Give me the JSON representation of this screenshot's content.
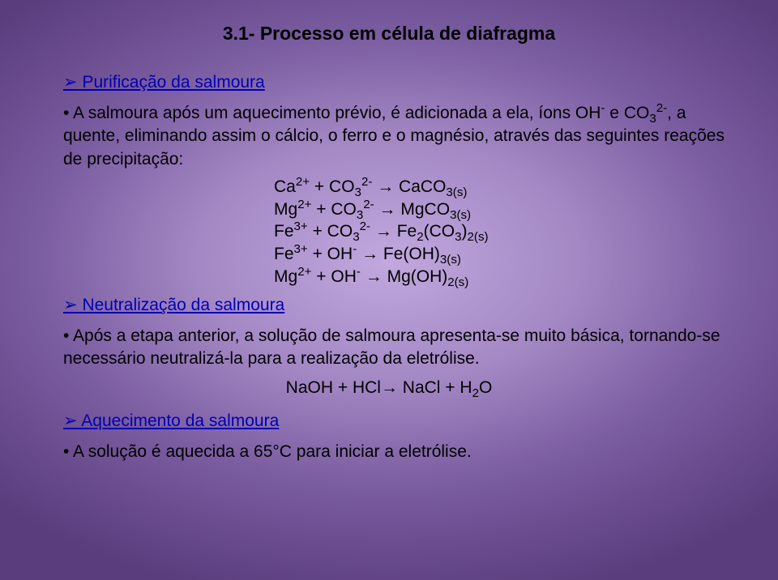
{
  "colors": {
    "heading": "#000000",
    "section_link": "#0000b3",
    "body_text": "#000000",
    "bg_center": "#c1a8de",
    "bg_edge": "#5a3d7d"
  },
  "typography": {
    "title_fontsize": 23,
    "body_fontsize": 21,
    "font_family": "Arial"
  },
  "title": "3.1- Processo em célula de diafragma",
  "sections": {
    "purif": {
      "chev": "➢",
      "label": " Purificação da salmoura"
    },
    "neutral": {
      "chev": "➢",
      "label": " Neutralização da salmoura"
    },
    "aquec": {
      "chev": "➢",
      "label": " Aquecimento da salmoura"
    }
  },
  "bullets": {
    "purif_intro_pre": "• A salmoura após um aquecimento prévio, é adicionada a ela, íons OH",
    "purif_intro_mid1": " e CO",
    "purif_intro_mid2": ", a quente, eliminando assim o cálcio, o ferro e o magnésio, através das seguintes reações de precipitação:",
    "neutral_line": "• Após a etapa anterior, a solução de salmoura apresenta-se muito básica, tornando-se necessário neutralizá-la para a realização da eletrólise.",
    "aquec_line": "• A solução é aquecida a 65°C para iniciar a eletrólise."
  },
  "equations": {
    "arrow": "→",
    "eq1": {
      "lhs_a": "Ca",
      "lhs_a_sup": "2+",
      "plus": " + CO",
      "lhs_b_sub": "3",
      "lhs_b_sup": "2-",
      "rhs": " CaCO",
      "rhs_sub": "3(s)"
    },
    "eq2": {
      "lhs_a": "Mg",
      "lhs_a_sup": "2+",
      "plus": " + CO",
      "lhs_b_sub": "3",
      "lhs_b_sup": "2-",
      "rhs": " MgCO",
      "rhs_sub": "3(s)"
    },
    "eq3": {
      "lhs_a": "Fe",
      "lhs_a_sup": "3+",
      "plus": " + CO",
      "lhs_b_sub": "3",
      "lhs_b_sup": "2-",
      "rhs_a": " Fe",
      "rhs_a_sub": "2",
      "rhs_b": "(CO",
      "rhs_b_sub": "3",
      "rhs_c": ")",
      "rhs_c_sub": "2(s)"
    },
    "eq4": {
      "lhs_a": "Fe",
      "lhs_a_sup": "3+",
      "plus": " + OH",
      "lhs_b_sup": "-",
      "rhs": " Fe(OH)",
      "rhs_sub": "3(s)"
    },
    "eq5": {
      "lhs_a": "Mg",
      "lhs_a_sup": "2+",
      "plus": " + OH",
      "lhs_b_sup": "-",
      "rhs": " Mg(OH)",
      "rhs_sub": "2(s)"
    },
    "neutral": {
      "lhs": "NaOH + HCl",
      "rhs_a": " NaCl + H",
      "rhs_sub": "2",
      "rhs_b": "O"
    }
  },
  "chem_sup_minus": "-",
  "chem_co3_sub": "3",
  "chem_co3_sup": "2-"
}
